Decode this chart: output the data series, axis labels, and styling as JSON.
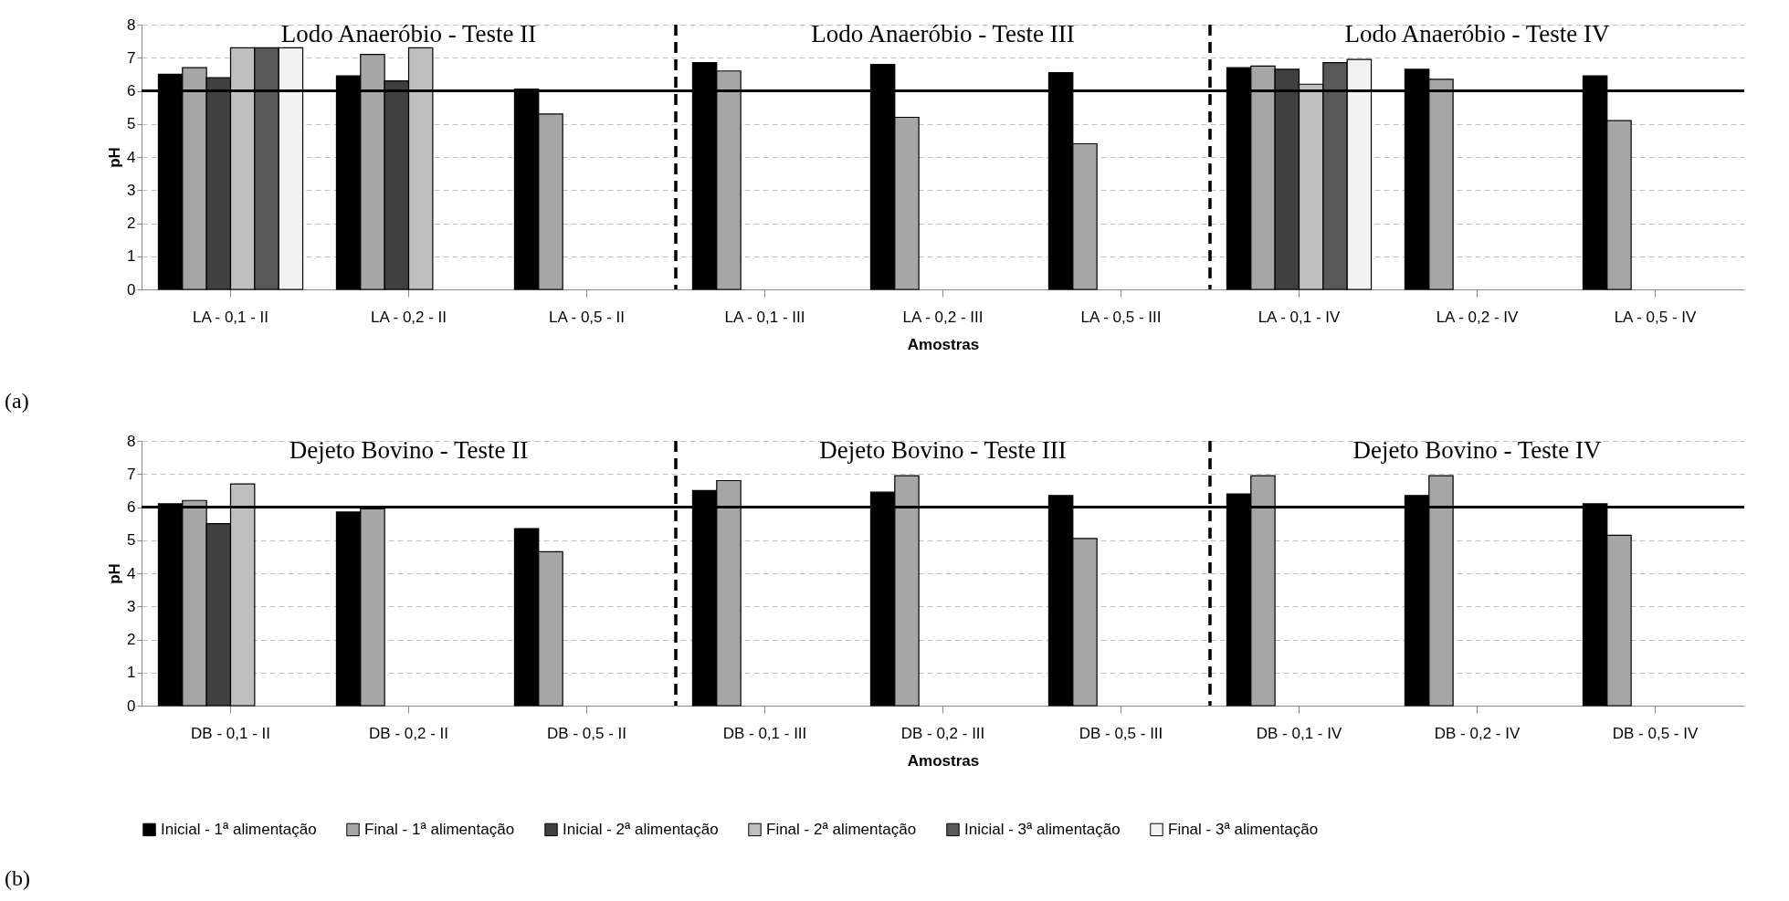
{
  "chart_data": [
    {
      "type": "bar",
      "ylabel": "pH",
      "xlabel": "Amostras",
      "categories": [
        "LA - 0,1 - II",
        "LA - 0,2 - II",
        "LA - 0,5 - II",
        "LA - 0,1 - III",
        "LA - 0,2 - III",
        "LA - 0,5 - III",
        "LA - 0,1 - IV",
        "LA - 0,2 - IV",
        "LA - 0,5 - IV"
      ],
      "series": [
        {
          "name": "Inicial - 1ª alimentação",
          "color": "#000000",
          "values": [
            6.5,
            6.45,
            6.05,
            6.85,
            6.8,
            6.55,
            6.7,
            6.65,
            6.45
          ]
        },
        {
          "name": "Final - 1ª alimentação",
          "color": "#a6a6a6",
          "values": [
            6.7,
            7.1,
            5.3,
            6.6,
            5.2,
            4.4,
            6.75,
            6.35,
            5.1
          ]
        },
        {
          "name": "Inicial - 2ª alimentação",
          "color": "#404040",
          "values": [
            6.4,
            6.3,
            null,
            null,
            null,
            null,
            6.65,
            null,
            null
          ]
        },
        {
          "name": "Final - 2ª alimentação",
          "color": "#bfbfbf",
          "values": [
            7.3,
            7.3,
            null,
            null,
            null,
            null,
            6.2,
            null,
            null
          ]
        },
        {
          "name": "Inicial - 3ª alimentação",
          "color": "#595959",
          "values": [
            7.3,
            null,
            null,
            null,
            null,
            null,
            6.85,
            null,
            null
          ]
        },
        {
          "name": "Final - 3ª alimentação",
          "color": "#f2f2f2",
          "values": [
            7.3,
            null,
            null,
            null,
            null,
            null,
            6.95,
            null,
            null
          ]
        }
      ],
      "ylim": [
        0,
        8
      ],
      "yticks": [
        0,
        1,
        2,
        3,
        4,
        5,
        6,
        7,
        8
      ],
      "grid": "y",
      "legend": "bottom",
      "ref_lines": [
        {
          "axis": "y",
          "value": 6,
          "color": "#000000",
          "line_style": "solid"
        }
      ],
      "annotations": [
        "Lodo Anaeróbio - Teste II",
        "Lodo Anaeróbio - Teste III",
        "Lodo Anaeróbio - Teste IV",
        "(a)"
      ]
    },
    {
      "type": "bar",
      "ylabel": "pH",
      "xlabel": "Amostras",
      "categories": [
        "DB - 0,1 - II",
        "DB - 0,2 - II",
        "DB - 0,5 - II",
        "DB - 0,1 - III",
        "DB - 0,2 - III",
        "DB - 0,5 - III",
        "DB - 0,1 - IV",
        "DB - 0,2 - IV",
        "DB - 0,5 - IV"
      ],
      "series": [
        {
          "name": "Inicial - 1ª alimentação",
          "color": "#000000",
          "values": [
            6.1,
            5.85,
            5.35,
            6.5,
            6.45,
            6.35,
            6.4,
            6.35,
            6.1
          ]
        },
        {
          "name": "Final - 1ª alimentação",
          "color": "#a6a6a6",
          "values": [
            6.2,
            5.95,
            4.65,
            6.8,
            6.95,
            5.05,
            6.95,
            6.95,
            5.15
          ]
        },
        {
          "name": "Inicial - 2ª alimentação",
          "color": "#404040",
          "values": [
            5.5,
            null,
            null,
            null,
            null,
            null,
            null,
            null,
            null
          ]
        },
        {
          "name": "Final - 2ª alimentação",
          "color": "#bfbfbf",
          "values": [
            6.7,
            null,
            null,
            null,
            null,
            null,
            null,
            null,
            null
          ]
        },
        {
          "name": "Inicial - 3ª alimentação",
          "color": "#595959",
          "values": [
            null,
            null,
            null,
            null,
            null,
            null,
            null,
            null,
            null
          ]
        },
        {
          "name": "Final - 3ª alimentação",
          "color": "#f2f2f2",
          "values": [
            null,
            null,
            null,
            null,
            null,
            null,
            null,
            null,
            null
          ]
        }
      ],
      "ylim": [
        0,
        8
      ],
      "yticks": [
        0,
        1,
        2,
        3,
        4,
        5,
        6,
        7,
        8
      ],
      "grid": "y",
      "legend": "bottom",
      "ref_lines": [
        {
          "axis": "y",
          "value": 6,
          "color": "#000000",
          "line_style": "solid"
        }
      ],
      "annotations": [
        "Dejeto Bovino - Teste II",
        "Dejeto Bovino - Teste III",
        "Dejeto Bovino - Teste IV",
        "(b)"
      ]
    }
  ]
}
